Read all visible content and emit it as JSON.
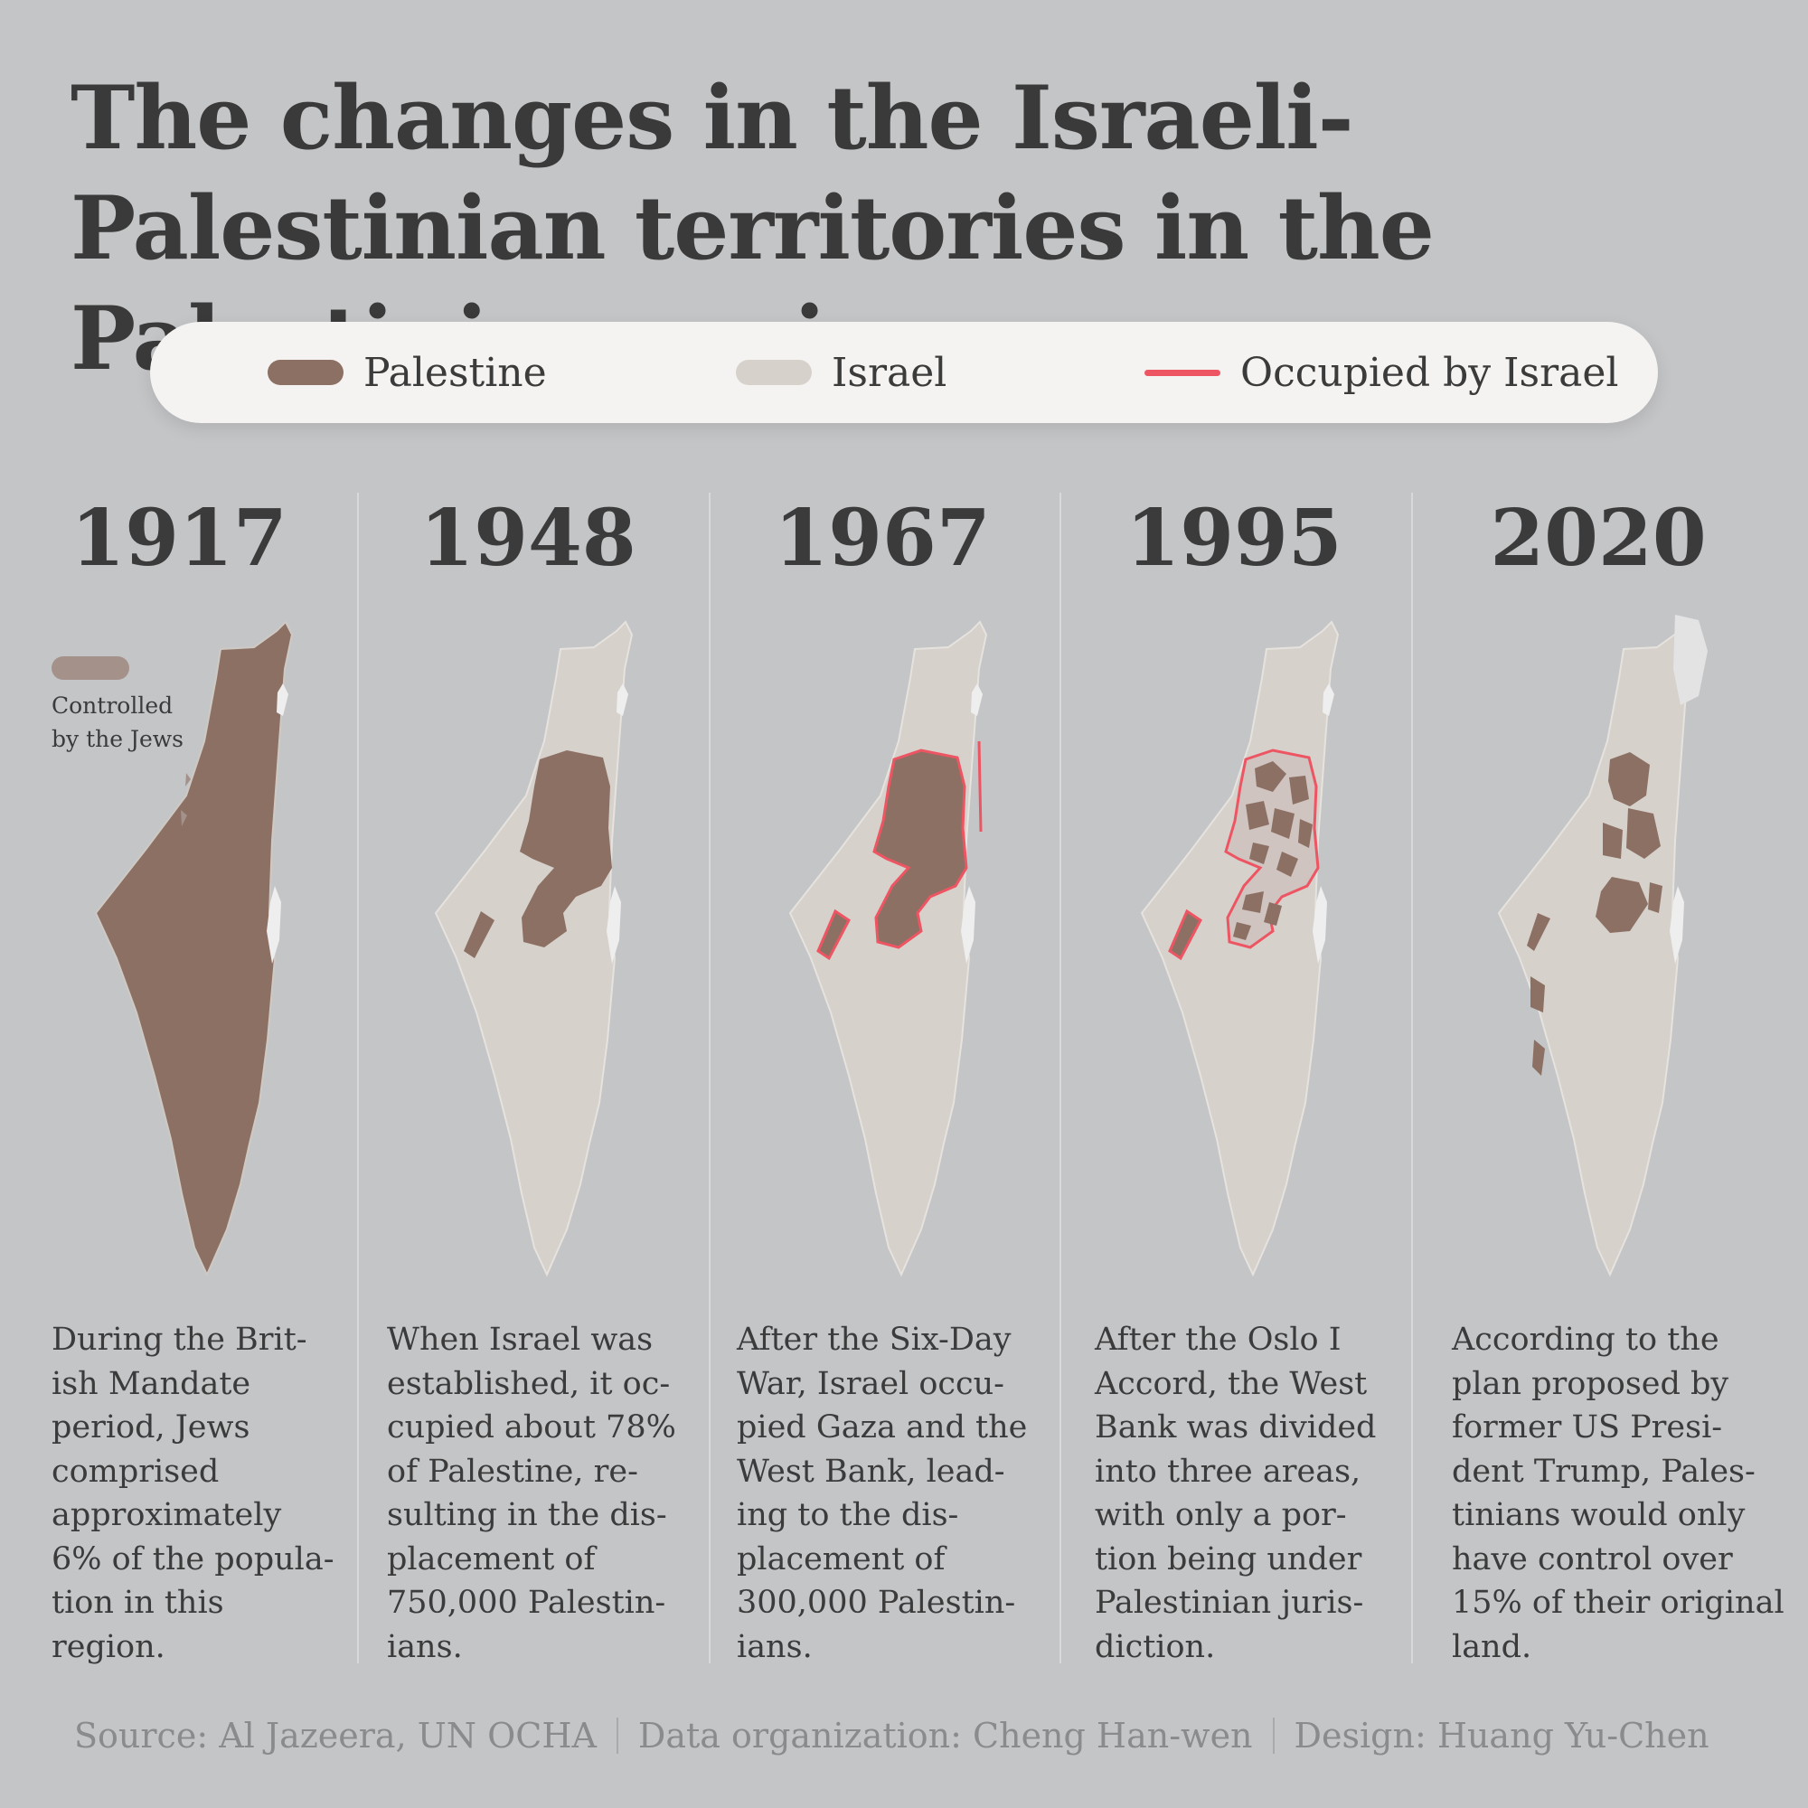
{
  "title": "The changes in the Israeli-Palestinian territories in the Palestinian region",
  "colors": {
    "palestine": "#8c7064",
    "israel": "#d7d1cc",
    "occupied": "#ee5563",
    "background": "#c4c5c7",
    "jewish_controlled": "#a4918a"
  },
  "legend": [
    {
      "label": "Palestine",
      "kind": "fill",
      "color": "#8c7064"
    },
    {
      "label": "Israel",
      "kind": "fill",
      "color": "#d7d1cc"
    },
    {
      "label": "Occupied by Israel",
      "kind": "line",
      "color": "#ee5563"
    }
  ],
  "panels": [
    {
      "year": "1917",
      "description": "During the Brit-\nish Mandate\nperiod, Jews\ncomprised\napproximately\n6% of the popula-\ntion in this\nregion.",
      "note": "Controlled\nby the Jews"
    },
    {
      "year": "1948",
      "description": "When Israel was\nestablished, it oc-\ncupied about 78%\nof Palestine, re-\nsulting in the dis-\nplacement of\n750,000 Palestin-\nians."
    },
    {
      "year": "1967",
      "description": "After the Six-Day\nWar, Israel occu-\npied Gaza and the\nWest Bank, lead-\ning to the dis-\nplacement of\n300,000 Palestin-\nians."
    },
    {
      "year": "1995",
      "description": "After the Oslo I\nAccord, the West\nBank was divided\ninto three areas,\nwith only a por-\ntion being under\nPalestinian juris-\ndiction."
    },
    {
      "year": "2020",
      "description": "According to the\nplan proposed by\nformer US Presi-\ndent Trump, Pales-\ntinians would only\nhave control over\n15% of their original\nland."
    }
  ],
  "footer": {
    "source": "Source:  Al Jazeera, UN OCHA",
    "data": "Data organization: Cheng Han-wen",
    "design": "Design: Huang Yu-Chen"
  }
}
